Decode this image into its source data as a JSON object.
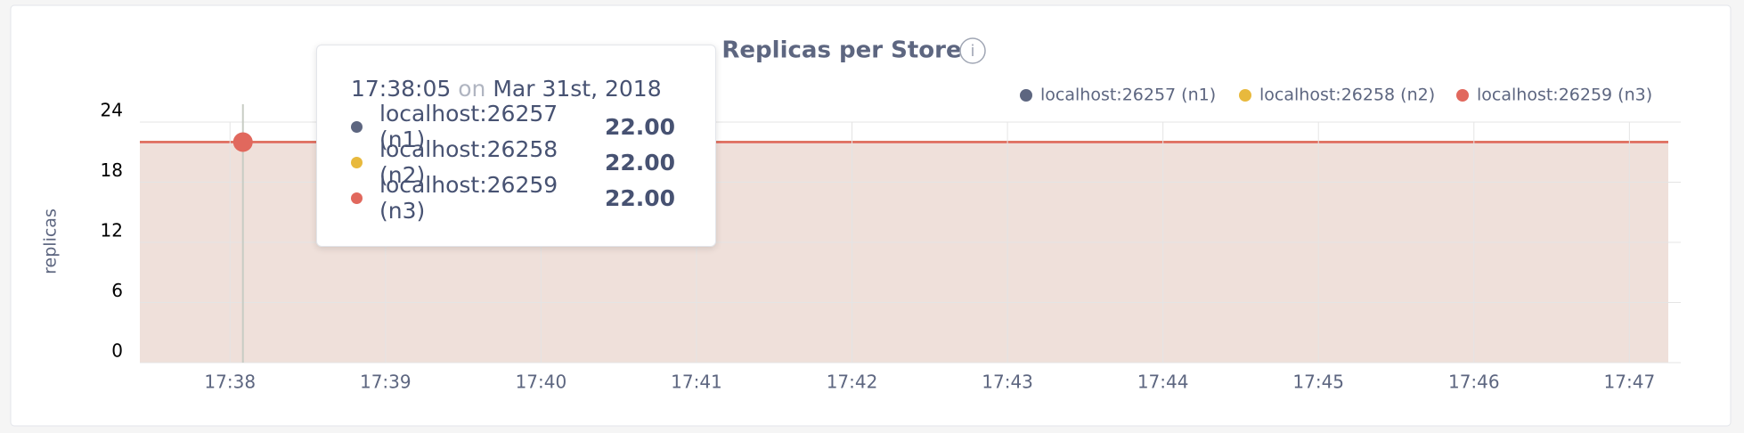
{
  "chart_data": {
    "type": "area",
    "title": "Replicas per Store",
    "y_label": "replicas",
    "x": [
      1057.42,
      1058.083,
      1067.25
    ],
    "series": [
      {
        "name": "localhost:26257 (n1)",
        "color": "#5d6680",
        "values": [
          22,
          22,
          22
        ]
      },
      {
        "name": "localhost:26258 (n2)",
        "color": "#e8b93d",
        "values": [
          22,
          22,
          22
        ]
      },
      {
        "name": "localhost:26259 (n3)",
        "color": "#e1685d",
        "fill": "#efe0da",
        "values": [
          22,
          22,
          22
        ]
      }
    ],
    "xlim": [
      1057.42,
      1067.25
    ],
    "xticks": [
      {
        "value": 1058,
        "label": "17:38"
      },
      {
        "value": 1059,
        "label": "17:39"
      },
      {
        "value": 1060,
        "label": "17:40"
      },
      {
        "value": 1061,
        "label": "17:41"
      },
      {
        "value": 1062,
        "label": "17:42"
      },
      {
        "value": 1063,
        "label": "17:43"
      },
      {
        "value": 1064,
        "label": "17:44"
      },
      {
        "value": 1065,
        "label": "17:45"
      },
      {
        "value": 1066,
        "label": "17:46"
      },
      {
        "value": 1067,
        "label": "17:47"
      }
    ],
    "ylim": [
      0,
      24
    ],
    "yticks": [
      0,
      6,
      12,
      18,
      24
    ],
    "grid": true,
    "legend": "top-right",
    "tooltip": {
      "time": "17:38:05",
      "on": "on",
      "date": "Mar 31st, 2018",
      "rows": [
        {
          "name": "localhost:26257 (n1)",
          "value": 22,
          "label": "22.00"
        },
        {
          "name": "localhost:26258 (n2)",
          "value": 22,
          "label": "22.00"
        },
        {
          "name": "localhost:26259 (n3)",
          "value": 22,
          "label": "22.00"
        }
      ]
    }
  }
}
